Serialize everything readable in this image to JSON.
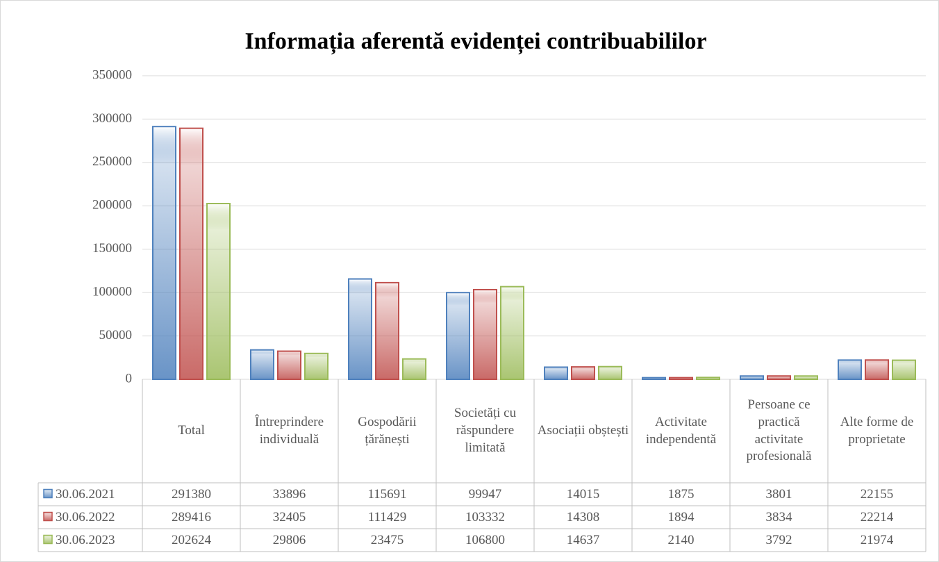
{
  "chart_data": {
    "type": "bar",
    "title": "Informația aferentă evidenței contribuabililor",
    "categories": [
      "Total",
      "Întreprindere individuală",
      "Gospodării țărănești",
      "Societăți cu răspundere limitată",
      "Asociații obștești",
      "Activitate independentă",
      "Persoane ce practică activitate profesională",
      "Alte forme de proprietate"
    ],
    "series": [
      {
        "name": "30.06.2021",
        "color": "#4f81bd",
        "values": [
          291380,
          33896,
          115691,
          99947,
          14015,
          1875,
          3801,
          22155
        ]
      },
      {
        "name": "30.06.2022",
        "color": "#c0504d",
        "values": [
          289416,
          32405,
          111429,
          103332,
          14308,
          1894,
          3834,
          22214
        ]
      },
      {
        "name": "30.06.2023",
        "color": "#9bbb59",
        "values": [
          202624,
          29806,
          23475,
          106800,
          14637,
          2140,
          3792,
          21974
        ]
      }
    ],
    "ylim": [
      0,
      350000
    ],
    "yticks": [
      0,
      50000,
      100000,
      150000,
      200000,
      250000,
      300000,
      350000
    ],
    "grid": true,
    "data_table": true
  }
}
